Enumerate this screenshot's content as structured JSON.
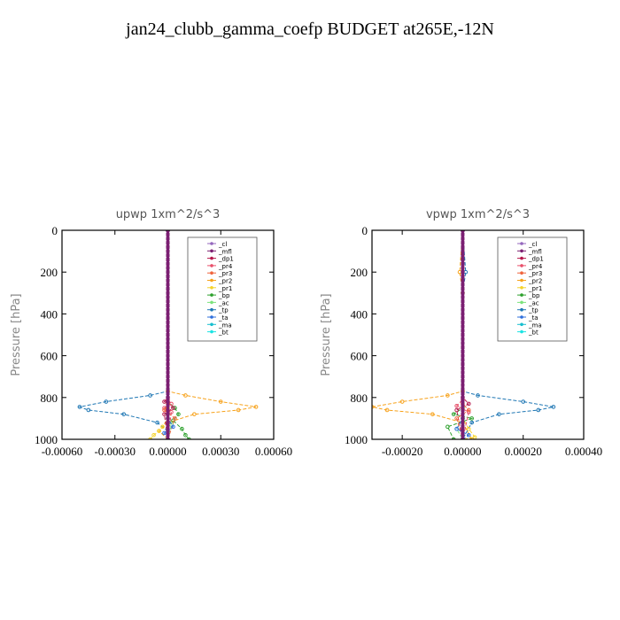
{
  "title": "jan24_clubb_gamma_coefp  BUDGET at265E,-12N",
  "series_styles": [
    {
      "name": "_cl",
      "color": "#9467bd"
    },
    {
      "name": "_mfl",
      "color": "#7b1f72"
    },
    {
      "name": "_dp1",
      "color": "#b5174b"
    },
    {
      "name": "_pr4",
      "color": "#e8506a"
    },
    {
      "name": "_pr3",
      "color": "#f0643c"
    },
    {
      "name": "_pr2",
      "color": "#f7a21b"
    },
    {
      "name": "_pr1",
      "color": "#f5d32a"
    },
    {
      "name": "_bp",
      "color": "#2ca02c"
    },
    {
      "name": "_ac",
      "color": "#7ce37c"
    },
    {
      "name": "_tp",
      "color": "#1f77b4"
    },
    {
      "name": "_ta",
      "color": "#2e6fdc"
    },
    {
      "name": "_ma",
      "color": "#17becf"
    },
    {
      "name": "_bt",
      "color": "#19e3e3"
    }
  ],
  "chart_data": [
    {
      "type": "line",
      "title": "upwp   1xm^2/s^3",
      "ylabel": "Pressure [hPa]",
      "xlim": [
        -0.0006,
        0.0006
      ],
      "ylim": [
        1000,
        0
      ],
      "xticks": [
        -0.0006,
        -0.0003,
        0.0,
        0.0003,
        0.0006
      ],
      "xtick_labels": [
        "-0.00060",
        "-0.00030",
        "0.00000",
        "0.00030",
        "0.00060"
      ],
      "yticks": [
        0,
        200,
        400,
        600,
        800,
        1000
      ],
      "ytick_labels": [
        "0",
        "200",
        "400",
        "600",
        "800",
        "1000"
      ],
      "legend_position": "top-right",
      "series": [
        {
          "name": "_tp",
          "x": [
            0.0,
            0.0,
            -0.0001,
            -0.00035,
            -0.0005,
            -0.00045,
            -0.00025,
            -6e-05,
            0.0,
            0.0
          ],
          "y": [
            0,
            770,
            790,
            820,
            845,
            860,
            880,
            920,
            960,
            1000
          ]
        },
        {
          "name": "_pr2",
          "x": [
            0.0,
            0.0,
            0.0001,
            0.0003,
            0.0005,
            0.0004,
            0.00015,
            0.0,
            -5e-05,
            0.0
          ],
          "y": [
            0,
            770,
            790,
            820,
            845,
            860,
            880,
            920,
            960,
            1000
          ]
        },
        {
          "name": "_pr1",
          "x": [
            0.0,
            0.0,
            0.0,
            -3e-05,
            -5e-05,
            -8e-05,
            -0.0001,
            0.0
          ],
          "y": [
            0,
            850,
            900,
            940,
            960,
            980,
            1000,
            1000
          ]
        },
        {
          "name": "_bp",
          "x": [
            0.0,
            0.0,
            4e-05,
            6e-05,
            3e-05,
            8e-05,
            0.0001,
            0.00012
          ],
          "y": [
            0,
            820,
            850,
            880,
            910,
            950,
            980,
            1000
          ]
        },
        {
          "name": "_dp1",
          "x": [
            0.0,
            0.0,
            -2e-05,
            3e-05,
            -2e-05,
            0.0
          ],
          "y": [
            0,
            800,
            820,
            850,
            880,
            1000
          ]
        },
        {
          "name": "_pr4",
          "x": [
            0.0,
            0.0,
            2e-05,
            -2e-05,
            2e-05,
            0.0
          ],
          "y": [
            0,
            810,
            830,
            850,
            870,
            1000
          ]
        },
        {
          "name": "_pr3",
          "x": [
            0.0,
            0.0,
            -2e-05,
            4e-05,
            0.0
          ],
          "y": [
            0,
            830,
            860,
            900,
            1000
          ]
        },
        {
          "name": "_ac",
          "x": [
            0.0,
            0.0,
            2e-05,
            0.0
          ],
          "y": [
            0,
            880,
            930,
            1000
          ]
        },
        {
          "name": "_ta",
          "x": [
            0.0,
            0.0,
            3e-05,
            -2e-05,
            0.0
          ],
          "y": [
            0,
            900,
            940,
            970,
            1000
          ]
        },
        {
          "name": "_ma",
          "x": [
            0.0,
            0.0
          ],
          "y": [
            0,
            1000
          ]
        },
        {
          "name": "_bt",
          "x": [
            0.0,
            0.0
          ],
          "y": [
            0,
            1000
          ]
        },
        {
          "name": "_cl",
          "x": [
            0.0,
            0.0
          ],
          "y": [
            0,
            1000
          ]
        },
        {
          "name": "_mfl",
          "x": [
            0.0,
            0.0
          ],
          "y": [
            0,
            1000
          ]
        }
      ]
    },
    {
      "type": "line",
      "title": "vpwp   1xm^2/s^3",
      "ylabel": "Pressure [hPa]",
      "xlim": [
        -0.0003,
        0.0004
      ],
      "ylim": [
        1000,
        0
      ],
      "xticks": [
        -0.0002,
        0.0,
        0.0002,
        0.0004
      ],
      "xtick_labels": [
        "-0.00020",
        "0.00000",
        "0.00020",
        "0.00040"
      ],
      "yticks": [
        0,
        200,
        400,
        600,
        800,
        1000
      ],
      "ytick_labels": [
        "0",
        "200",
        "400",
        "600",
        "800",
        "1000"
      ],
      "legend_position": "top-right",
      "series": [
        {
          "name": "_tp",
          "x": [
            0.0,
            1e-05,
            0.0,
            0.0,
            5e-05,
            0.0002,
            0.0003,
            0.00025,
            0.00012,
            3e-05,
            0.0
          ],
          "y": [
            0,
            200,
            300,
            770,
            790,
            820,
            845,
            860,
            880,
            920,
            1000
          ]
        },
        {
          "name": "_pr2",
          "x": [
            0.0,
            -1e-05,
            0.0,
            0.0,
            -5e-05,
            -0.0002,
            -0.0003,
            -0.00025,
            -0.0001,
            0.0,
            3e-05
          ],
          "y": [
            0,
            200,
            300,
            770,
            790,
            820,
            845,
            860,
            880,
            920,
            1000
          ]
        },
        {
          "name": "_pr1",
          "x": [
            0.0,
            0.0,
            2e-05,
            4e-05,
            0.0
          ],
          "y": [
            0,
            900,
            950,
            990,
            1000
          ]
        },
        {
          "name": "_bp",
          "x": [
            0.0,
            0.0,
            -3e-05,
            3e-05,
            -5e-05,
            -3e-05
          ],
          "y": [
            0,
            850,
            880,
            900,
            940,
            1000
          ]
        },
        {
          "name": "_dp1",
          "x": [
            0.0,
            0.0,
            2e-05,
            -2e-05,
            0.0
          ],
          "y": [
            0,
            800,
            830,
            860,
            1000
          ]
        },
        {
          "name": "_pr4",
          "x": [
            0.0,
            0.0,
            -2e-05,
            2e-05,
            0.0
          ],
          "y": [
            0,
            810,
            840,
            870,
            1000
          ]
        },
        {
          "name": "_pr3",
          "x": [
            0.0,
            0.0,
            2e-05,
            -2e-05,
            0.0
          ],
          "y": [
            0,
            830,
            860,
            900,
            1000
          ]
        },
        {
          "name": "_ac",
          "x": [
            0.0,
            0.0,
            -2e-05,
            0.0
          ],
          "y": [
            0,
            900,
            950,
            1000
          ]
        },
        {
          "name": "_ta",
          "x": [
            0.0,
            0.0,
            -2e-05,
            2e-05,
            0.0
          ],
          "y": [
            0,
            900,
            950,
            980,
            1000
          ]
        },
        {
          "name": "_ma",
          "x": [
            0.0,
            0.0
          ],
          "y": [
            0,
            1000
          ]
        },
        {
          "name": "_bt",
          "x": [
            0.0,
            0.0
          ],
          "y": [
            0,
            1000
          ]
        },
        {
          "name": "_cl",
          "x": [
            0.0,
            0.0
          ],
          "y": [
            0,
            1000
          ]
        },
        {
          "name": "_mfl",
          "x": [
            0.0,
            0.0
          ],
          "y": [
            0,
            1000
          ]
        }
      ]
    }
  ]
}
